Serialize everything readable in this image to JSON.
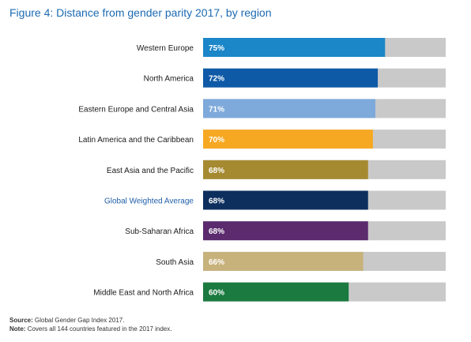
{
  "title": "Figure 4: Distance from gender parity 2017, by region",
  "colors": {
    "title": "#1b6ab2",
    "track": "#c9c9c9",
    "highlight_label": "#1f5fa8",
    "label": "#1a1a1a",
    "value_text": "#ffffff"
  },
  "chart_data": {
    "type": "bar",
    "orientation": "horizontal",
    "xlim": [
      0,
      100
    ],
    "title": "Figure 4: Distance from gender parity 2017, by region",
    "categories": [
      "Western Europe",
      "North America",
      "Eastern Europe and Central Asia",
      "Latin America and the Caribbean",
      "East Asia and the Pacific",
      "Global Weighted Average",
      "Sub-Saharan Africa",
      "South Asia",
      "Middle East and North Africa"
    ],
    "values": [
      75,
      72,
      71,
      70,
      68,
      68,
      68,
      66,
      60
    ],
    "value_labels": [
      "75%",
      "72%",
      "71%",
      "70%",
      "68%",
      "68%",
      "68%",
      "66%",
      "60%"
    ],
    "bar_colors": [
      "#1b86c8",
      "#0e5aa7",
      "#7eaadb",
      "#f7a823",
      "#a68a32",
      "#0d2f5e",
      "#5b2b6e",
      "#c8b27c",
      "#1a7a3f"
    ],
    "highlight_category": "Global Weighted Average"
  },
  "footnotes": {
    "source_label": "Source:",
    "source_text": "Global Gender Gap Index 2017.",
    "note_label": "Note:",
    "note_text": "Covers all 144 countries featured in the 2017 index."
  }
}
